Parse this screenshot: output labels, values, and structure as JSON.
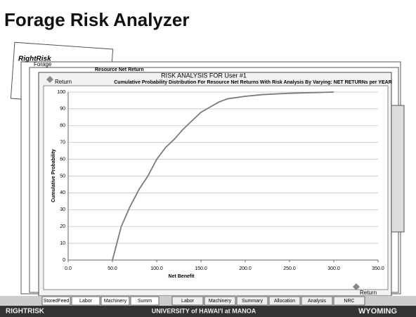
{
  "slide_title": "Forage Risk Analyzer",
  "background": {
    "logo": "RightRisk",
    "label": "Forage",
    "sheet_title": "Resource Net Return"
  },
  "return_top": "Return",
  "return_bottom": "Return",
  "tabs_left": [
    "StoredFeed",
    "Labor",
    "Machinery",
    "Summ"
  ],
  "tabs_right": [
    "Labor",
    "Machinery",
    "Summary",
    "Allocation",
    "Analysis",
    "NRC"
  ],
  "footer": [
    "RIGHTRISK",
    "UNIVERSITY of HAWAI'I at MANOA",
    "WYOMING"
  ],
  "chart_data": {
    "type": "line",
    "title": "RISK ANALYSIS FOR User #1",
    "subtitle": "Cumulative Probability Distribution For Resource Net Returns With Risk Analysis By Varying: NET RETURNs per YEAR",
    "x_label": "Net Benefit",
    "y_label": "Cumulative Probability",
    "x": [
      50,
      55,
      60,
      70,
      80,
      90,
      100,
      110,
      120,
      130,
      140,
      150,
      160,
      170,
      180,
      200,
      220,
      250,
      300
    ],
    "series": [
      {
        "name": "Cumulative Probability",
        "color": "#7a7a7a",
        "values": [
          0,
          10,
          20,
          32,
          42,
          50,
          60,
          67,
          72,
          78,
          83,
          88,
          91,
          94,
          96,
          97.5,
          98.5,
          99.3,
          100
        ]
      }
    ],
    "xlim": [
      0,
      350
    ],
    "xticks": [
      {
        "value": 0,
        "label": "0.0"
      },
      {
        "value": 50,
        "label": "50.0"
      },
      {
        "value": 100,
        "label": "100.0"
      },
      {
        "value": 150,
        "label": "150.0"
      },
      {
        "value": 200,
        "label": "200.0"
      },
      {
        "value": 250,
        "label": "250.0"
      },
      {
        "value": 300,
        "label": "300.0"
      },
      {
        "value": 350,
        "label": "350.0"
      }
    ],
    "ylim": [
      0,
      100
    ],
    "yticks": [
      0,
      10,
      20,
      30,
      40,
      50,
      60,
      70,
      80,
      90,
      100
    ],
    "grid": true
  }
}
